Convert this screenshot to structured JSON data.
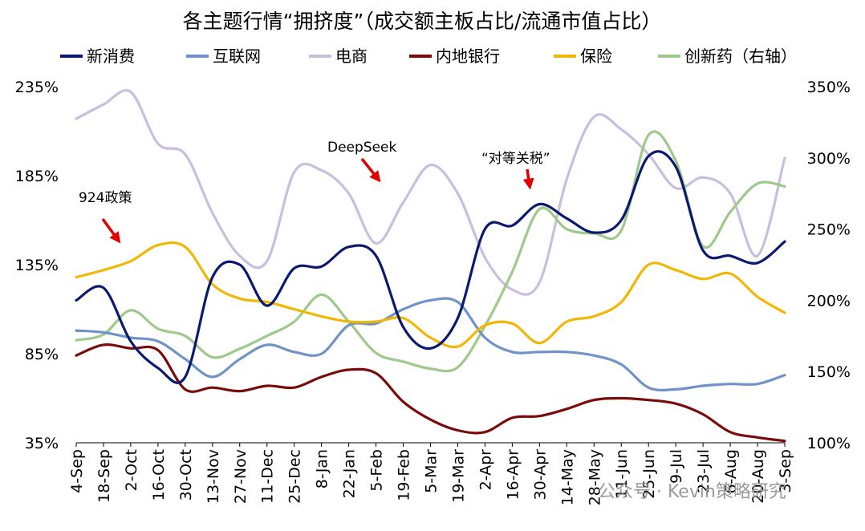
{
  "chart_data": {
    "type": "line",
    "title": "各主题行情“拥挤度”（成交额主板占比/流通市值占比）",
    "x": [
      "4-Sep",
      "18-Sep",
      "2-Oct",
      "16-Oct",
      "30-Oct",
      "13-Nov",
      "27-Nov",
      "11-Dec",
      "25-Dec",
      "8-Jan",
      "22-Jan",
      "5-Feb",
      "19-Feb",
      "5-Mar",
      "19-Mar",
      "2-Apr",
      "16-Apr",
      "30-Apr",
      "14-May",
      "28-May",
      "11-Jun",
      "25-Jun",
      "9-Jul",
      "23-Jul",
      "6-Aug",
      "20-Aug",
      "3-Sep"
    ],
    "left_axis": {
      "min": 35,
      "max": 235,
      "ticks": [
        "35%",
        "85%",
        "135%",
        "185%",
        "235%"
      ]
    },
    "right_axis": {
      "min": 100,
      "max": 350,
      "ticks": [
        "100%",
        "150%",
        "200%",
        "250%",
        "300%",
        "350%"
      ]
    },
    "legend_placement": "top",
    "grid": false,
    "series": [
      {
        "name": "新消费",
        "color": "#0b1a6e",
        "axis": "left",
        "values": [
          115,
          122,
          92,
          77,
          72,
          128,
          135,
          112,
          133,
          134,
          145,
          140,
          100,
          88,
          105,
          155,
          157,
          169,
          161,
          153,
          160,
          196,
          190,
          143,
          140,
          136,
          148
        ]
      },
      {
        "name": "互联网",
        "color": "#6f92c9",
        "axis": "left",
        "values": [
          98,
          97,
          94,
          92,
          82,
          72,
          82,
          90,
          86,
          85,
          101,
          102,
          110,
          115,
          114,
          94,
          86,
          86,
          86,
          84,
          79,
          66,
          65,
          67,
          68,
          68,
          73
        ]
      },
      {
        "name": "电商",
        "color": "#c9bedb",
        "axis": "left",
        "values": [
          217,
          225,
          232,
          203,
          197,
          164,
          140,
          137,
          187,
          188,
          175,
          147,
          170,
          191,
          175,
          139,
          121,
          125,
          183,
          218,
          211,
          197,
          178,
          184,
          175,
          140,
          195
        ]
      },
      {
        "name": "内地银行",
        "color": "#7a0b0b",
        "axis": "left",
        "values": [
          84,
          90,
          88,
          87,
          65,
          66,
          64,
          67,
          66,
          72,
          76,
          74,
          58,
          48,
          42,
          41,
          49,
          50,
          54,
          59,
          60,
          59,
          57,
          51,
          41,
          38,
          36
        ]
      },
      {
        "name": "保险",
        "color": "#f2b705",
        "axis": "left",
        "values": [
          128,
          132,
          137,
          146,
          145,
          124,
          116,
          114,
          110,
          106,
          103,
          103,
          105,
          94,
          89,
          101,
          102,
          91,
          103,
          106,
          114,
          135,
          132,
          127,
          130,
          117,
          108
        ]
      },
      {
        "name": "创新药（右轴）",
        "color": "#9fc98a",
        "axis": "right",
        "values": [
          172,
          176,
          193,
          180,
          175,
          160,
          166,
          175,
          185,
          204,
          185,
          163,
          157,
          152,
          153,
          182,
          220,
          264,
          250,
          247,
          249,
          316,
          298,
          238,
          262,
          282,
          280
        ]
      }
    ],
    "annotations": [
      {
        "text": "924政策",
        "x": "18-Sep"
      },
      {
        "text": "DeepSeek",
        "x": "5-Feb"
      },
      {
        "text": "“对等关税”",
        "x": "16-Apr"
      }
    ],
    "watermark": "公众号 · Kevin策略研究"
  }
}
